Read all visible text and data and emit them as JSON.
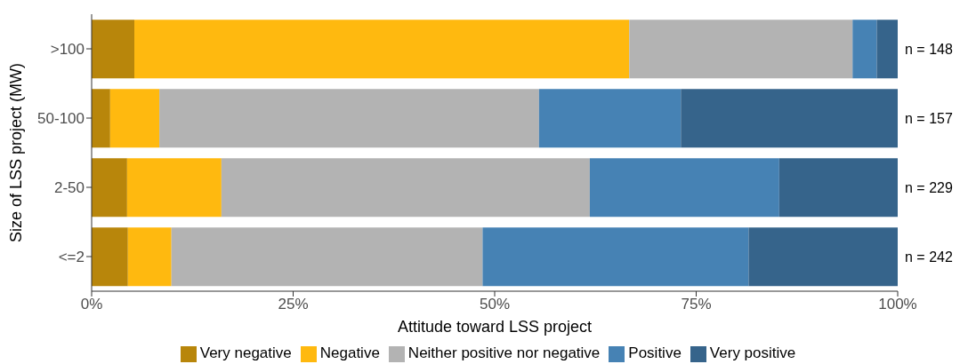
{
  "chart_data": {
    "type": "bar",
    "orientation": "horizontal",
    "stacked": true,
    "xlabel": "Attitude toward LSS project",
    "ylabel": "Size of LSS project (MW)",
    "categories": [
      ">100",
      "50-100",
      "2-50",
      "<=2"
    ],
    "series": [
      {
        "name": "Very negative",
        "color": "#b8860b",
        "values": [
          5.3,
          2.3,
          4.4,
          4.5
        ]
      },
      {
        "name": "Negative",
        "color": "#ffb90f",
        "values": [
          61.4,
          6.1,
          11.7,
          5.4
        ]
      },
      {
        "name": "Neither positive nor negative",
        "color": "#b3b3b3",
        "values": [
          27.7,
          47.1,
          45.7,
          38.6
        ]
      },
      {
        "name": "Positive",
        "color": "#4682b4",
        "values": [
          3.0,
          17.6,
          23.5,
          33.0
        ]
      },
      {
        "name": "Very positive",
        "color": "#36648b",
        "values": [
          2.6,
          26.9,
          14.7,
          18.5
        ]
      }
    ],
    "xlim": [
      0,
      100
    ],
    "xticks": [
      {
        "value": 0,
        "label": "0%"
      },
      {
        "value": 25,
        "label": "25%"
      },
      {
        "value": 50,
        "label": "50%"
      },
      {
        "value": 75,
        "label": "75%"
      },
      {
        "value": 100,
        "label": "100%"
      }
    ],
    "grid": false,
    "legend": "bottom",
    "annotations": [
      "n =  148",
      "n =  157",
      "n =  229",
      "n =  242"
    ]
  }
}
